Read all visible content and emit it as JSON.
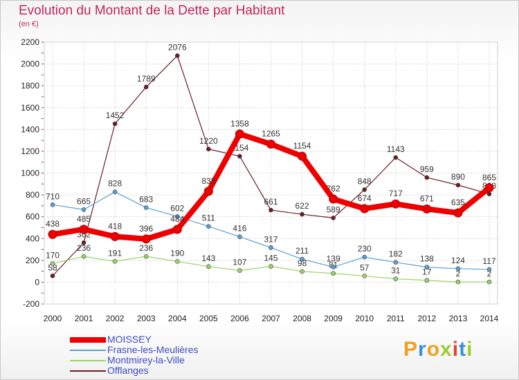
{
  "title": "Evolution du Montant de la Dette par Habitant",
  "subtitle": "(en €)",
  "brand": {
    "text": "Proxiti",
    "colors": [
      "#f0a020",
      "#3a8fd8",
      "#f0a020",
      "#9acd32",
      "#e8402a",
      "#3a8fd8",
      "#9acd32"
    ]
  },
  "chart_data": {
    "type": "line",
    "x": [
      2000,
      2001,
      2002,
      2003,
      2004,
      2005,
      2006,
      2007,
      2008,
      2009,
      2010,
      2011,
      2012,
      2013,
      2014
    ],
    "ylim": [
      -200,
      2200
    ],
    "yticks": [
      -200,
      0,
      200,
      400,
      600,
      800,
      1000,
      1200,
      1400,
      1600,
      1800,
      2000,
      2200
    ],
    "grid": true,
    "legend_position": "bottom-left",
    "series": [
      {
        "name": "Offlanges",
        "color": "#6b1c24",
        "width": 1.2,
        "values": [
          58,
          362,
          1452,
          1789,
          2076,
          1220,
          1154,
          661,
          622,
          589,
          848,
          1143,
          959,
          890,
          808
        ]
      },
      {
        "name": "Montmirey-la-Ville",
        "color": "#9ad46a",
        "width": 1.2,
        "values": [
          170,
          236,
          191,
          236,
          190,
          143,
          107,
          145,
          98,
          81,
          57,
          31,
          17,
          2,
          2
        ]
      },
      {
        "name": "Frasne-les-Meulières",
        "color": "#5a9fd4",
        "width": 1.2,
        "values": [
          710,
          665,
          828,
          683,
          602,
          511,
          416,
          317,
          211,
          139,
          230,
          182,
          138,
          124,
          117
        ]
      },
      {
        "name": "MOISSEY",
        "color": "#ee0000",
        "width": 8,
        "values": [
          438,
          485,
          418,
          396,
          484,
          833,
          1358,
          1265,
          1154,
          762,
          674,
          717,
          671,
          635,
          865
        ]
      }
    ]
  },
  "legend": [
    {
      "label": "MOISSEY",
      "color": "#ee0000",
      "thickness": 8
    },
    {
      "label": "Frasne-les-Meulières",
      "color": "#5a9fd4",
      "thickness": 2
    },
    {
      "label": "Montmirey-la-Ville",
      "color": "#9ad46a",
      "thickness": 2
    },
    {
      "label": "Offlanges",
      "color": "#6b1c24",
      "thickness": 2
    }
  ]
}
